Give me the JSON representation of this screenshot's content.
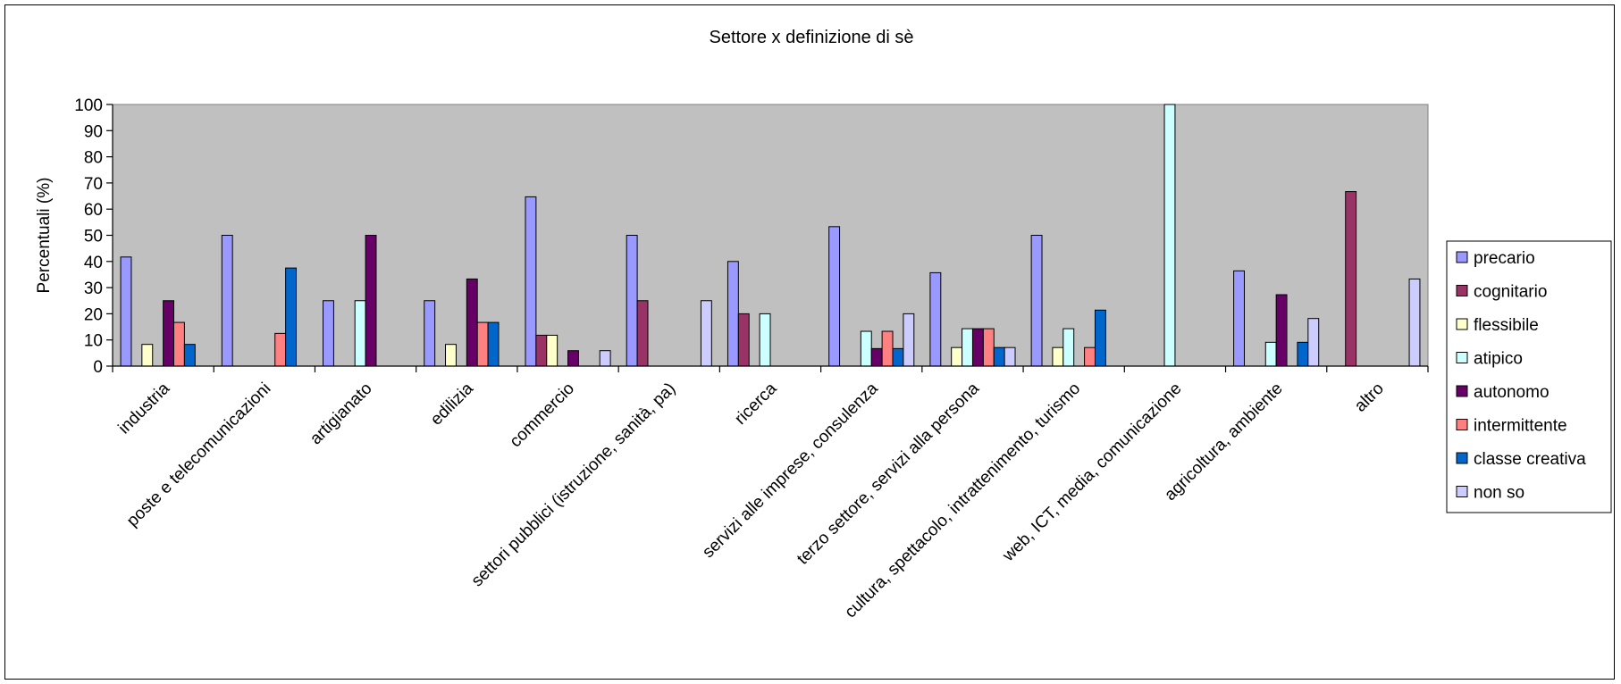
{
  "chart_data": {
    "type": "bar",
    "title": "Settore x definizione di sè",
    "ylabel": "Percentuali (%)",
    "xlabel": "",
    "ylim": [
      0,
      100
    ],
    "yticks": [
      0,
      10,
      20,
      30,
      40,
      50,
      60,
      70,
      80,
      90,
      100
    ],
    "grid": false,
    "legend_position": "right",
    "plot_background": "#c0c0c0",
    "categories": [
      "industria",
      "poste e telecomunicazioni",
      "artigianato",
      "edilizia",
      "commercio",
      "settori pubblici (istruzione, sanità, pa)",
      "ricerca",
      "servizi alle imprese, consulenza",
      "terzo settore, servizi alla persona",
      "cultura, spettacolo, intrattenimento, turismo",
      "web, ICT, media, comunicazione",
      "agricoltura, ambiente",
      "altro"
    ],
    "series": [
      {
        "name": "precario",
        "color": "#9999ff",
        "values": [
          41.7,
          50,
          25,
          25,
          64.7,
          50,
          40,
          53.3,
          35.7,
          50,
          0,
          36.4,
          0
        ]
      },
      {
        "name": "cognitario",
        "color": "#993366",
        "values": [
          0,
          0,
          0,
          0,
          11.8,
          25,
          20,
          0,
          0,
          0,
          0,
          0,
          66.7
        ]
      },
      {
        "name": "flessibile",
        "color": "#ffffcc",
        "values": [
          8.3,
          0,
          0,
          8.3,
          11.8,
          0,
          0,
          0,
          7.1,
          7.1,
          0,
          0,
          0
        ]
      },
      {
        "name": "atipico",
        "color": "#ccffff",
        "values": [
          0,
          0,
          25,
          0,
          0,
          0,
          20,
          13.3,
          14.3,
          14.3,
          100,
          9.1,
          0
        ]
      },
      {
        "name": "autonomo",
        "color": "#660066",
        "values": [
          25,
          0,
          50,
          33.3,
          5.9,
          0,
          0,
          6.7,
          14.3,
          0,
          0,
          27.3,
          0
        ]
      },
      {
        "name": "intermittente",
        "color": "#ff8080",
        "values": [
          16.7,
          12.5,
          0,
          16.7,
          0,
          0,
          0,
          13.3,
          14.3,
          7.1,
          0,
          0,
          0
        ]
      },
      {
        "name": "classe creativa",
        "color": "#0066cc",
        "values": [
          8.3,
          37.5,
          0,
          16.7,
          0,
          0,
          0,
          6.7,
          7.1,
          21.4,
          0,
          9.1,
          0
        ]
      },
      {
        "name": "non so",
        "color": "#ccccff",
        "values": [
          0,
          0,
          0,
          0,
          5.9,
          25,
          0,
          20,
          7.1,
          0,
          0,
          18.2,
          33.3
        ]
      }
    ]
  }
}
